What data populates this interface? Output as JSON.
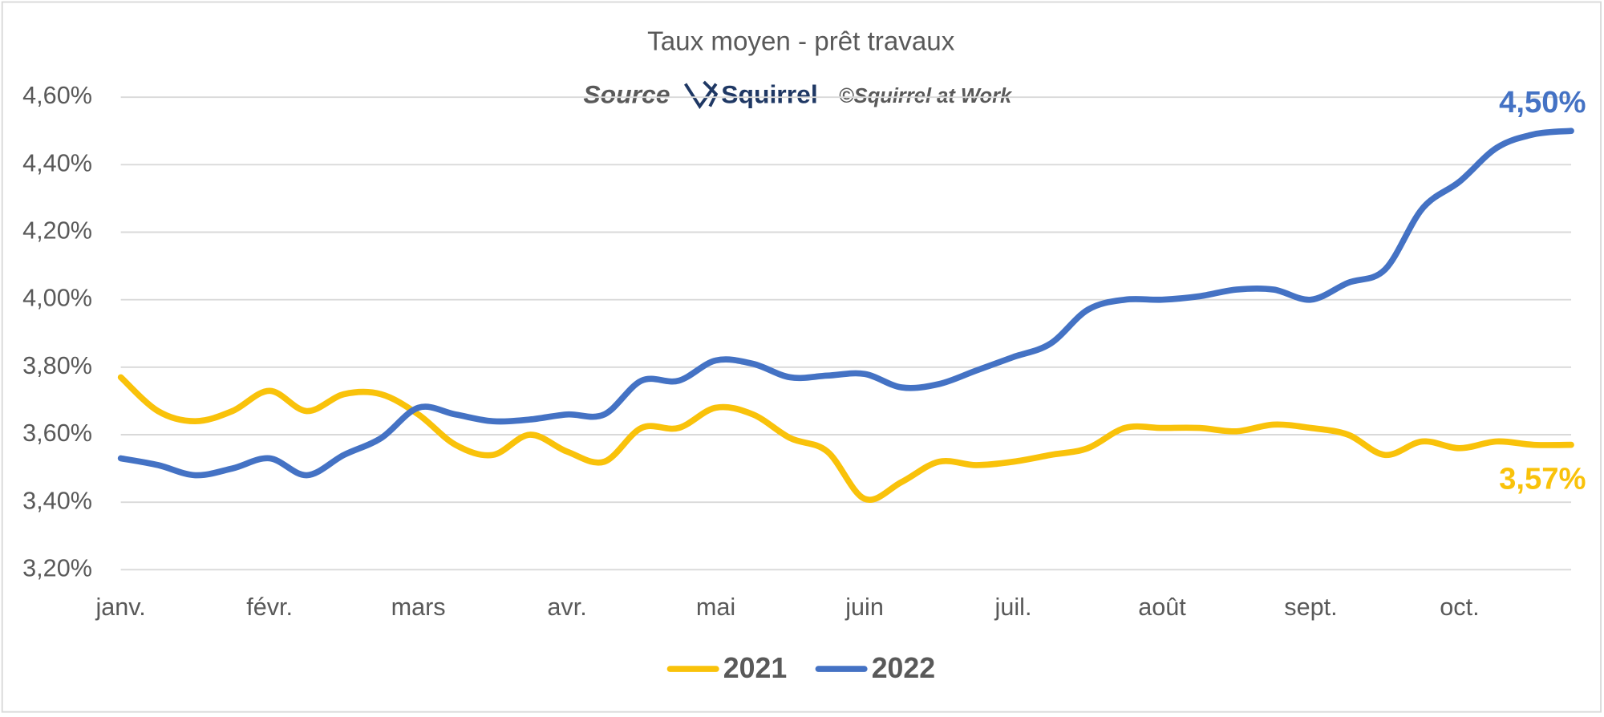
{
  "chart_data": {
    "type": "line",
    "title": "Taux moyen - prêt travaux",
    "source_label": "Source",
    "logo": "Squirrel",
    "credit": "©Squirrel at Work",
    "categories": [
      "janv.",
      null,
      null,
      null,
      "févr.",
      null,
      null,
      null,
      "mars",
      null,
      null,
      null,
      "avr.",
      null,
      null,
      null,
      "mai",
      null,
      null,
      null,
      "juin",
      null,
      null,
      null,
      "juil.",
      null,
      null,
      null,
      "août",
      null,
      null,
      null,
      "sept.",
      null,
      null,
      null,
      "oct.",
      null,
      null,
      null
    ],
    "series": [
      {
        "name": "2021",
        "color": "#f9c20a",
        "values": [
          3.77,
          3.67,
          3.64,
          3.67,
          3.73,
          3.67,
          3.72,
          3.72,
          3.66,
          3.57,
          3.54,
          3.6,
          3.55,
          3.52,
          3.62,
          3.62,
          3.68,
          3.66,
          3.59,
          3.55,
          3.41,
          3.46,
          3.52,
          3.51,
          3.52,
          3.54,
          3.56,
          3.62,
          3.62,
          3.62,
          3.61,
          3.63,
          3.62,
          3.6,
          3.54,
          3.58,
          3.56,
          3.58,
          3.57,
          3.57
        ],
        "value_labels": [
          null,
          null,
          null,
          null,
          null,
          null,
          null,
          null,
          null,
          null,
          null,
          null,
          null,
          null,
          null,
          null,
          null,
          null,
          null,
          null,
          null,
          null,
          null,
          null,
          null,
          null,
          null,
          null,
          null,
          null,
          null,
          null,
          null,
          null,
          null,
          null,
          null,
          null,
          null,
          "3,57%"
        ]
      },
      {
        "name": "2022",
        "color": "#4472c4",
        "values": [
          3.53,
          3.51,
          3.48,
          3.5,
          3.53,
          3.48,
          3.54,
          3.59,
          3.68,
          3.66,
          3.64,
          3.645,
          3.66,
          3.66,
          3.76,
          3.76,
          3.82,
          3.81,
          3.77,
          3.775,
          3.78,
          3.74,
          3.75,
          3.79,
          3.83,
          3.87,
          3.97,
          4.0,
          4.0,
          4.01,
          4.03,
          4.03,
          4.0,
          4.05,
          4.09,
          4.27,
          4.35,
          4.45,
          4.49,
          4.5
        ],
        "value_labels": [
          null,
          null,
          null,
          null,
          null,
          null,
          null,
          null,
          null,
          null,
          null,
          null,
          null,
          null,
          null,
          null,
          null,
          null,
          null,
          null,
          null,
          null,
          null,
          null,
          null,
          null,
          null,
          null,
          null,
          null,
          null,
          null,
          null,
          null,
          null,
          null,
          null,
          null,
          null,
          "4,50%"
        ]
      }
    ],
    "ylim": [
      3.2,
      4.6
    ],
    "yticks": [
      {
        "value": 3.2,
        "label": "3,20%"
      },
      {
        "value": 3.4,
        "label": "3,40%"
      },
      {
        "value": 3.6,
        "label": "3,60%"
      },
      {
        "value": 3.8,
        "label": "3,80%"
      },
      {
        "value": 4.0,
        "label": "4,00%"
      },
      {
        "value": 4.2,
        "label": "4,20%"
      },
      {
        "value": 4.4,
        "label": "4,40%"
      },
      {
        "value": 4.6,
        "label": "4,60%"
      }
    ],
    "grid": true,
    "legend": "bottom"
  }
}
